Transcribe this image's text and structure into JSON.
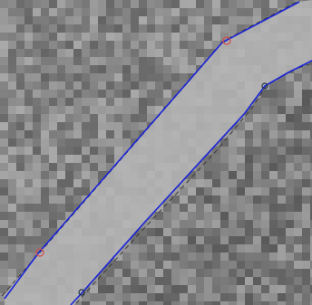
{
  "view": {
    "background": "#ffffff",
    "canvas_bg": "#8f8f8f",
    "corridor_fill": "#b5b5b5",
    "edge_color": "#1a24d8",
    "ghost_color": "#3a3a3a",
    "handle_red": "#d05050",
    "handle_dark": "#223344"
  }
}
